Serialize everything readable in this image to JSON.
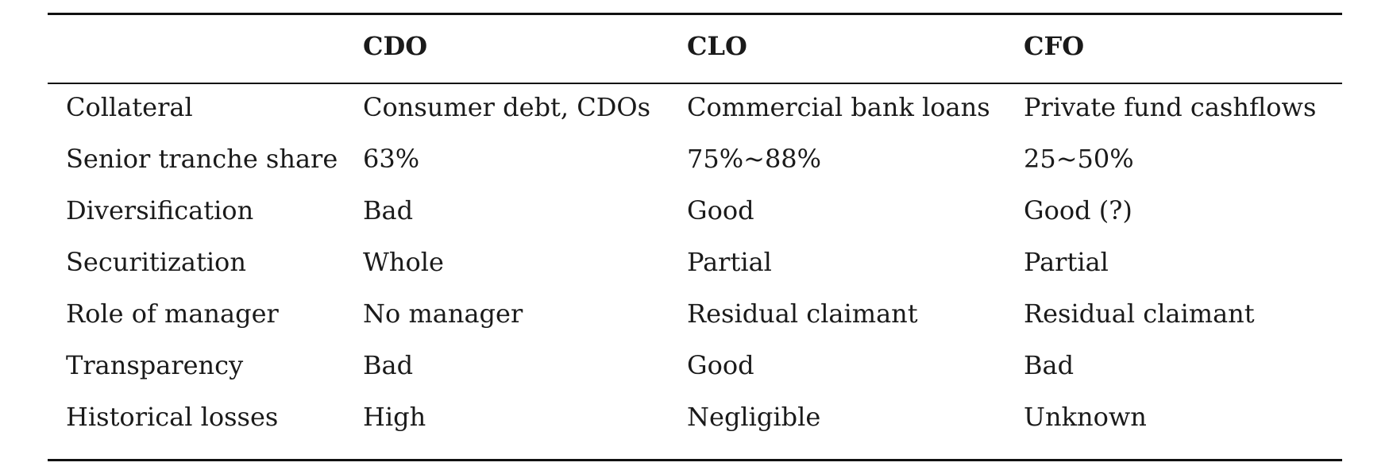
{
  "table": {
    "headers": [
      "",
      "CDO",
      "CLO",
      "CFO"
    ],
    "rows": [
      [
        "Collateral",
        "Consumer debt, CDOs",
        "Commercial bank loans",
        "Private fund cashflows"
      ],
      [
        "Senior tranche share",
        "63%",
        "75%~88%",
        "25~50%"
      ],
      [
        "Diversification",
        "Bad",
        "Good",
        "Good (?)"
      ],
      [
        "Securitization",
        "Whole",
        "Partial",
        "Partial"
      ],
      [
        "Role of manager",
        "No manager",
        "Residual claimant",
        "Residual claimant"
      ],
      [
        "Transparency",
        "Bad",
        "Good",
        "Bad"
      ],
      [
        "Historical losses",
        "High",
        "Negligible",
        "Unknown"
      ]
    ]
  }
}
